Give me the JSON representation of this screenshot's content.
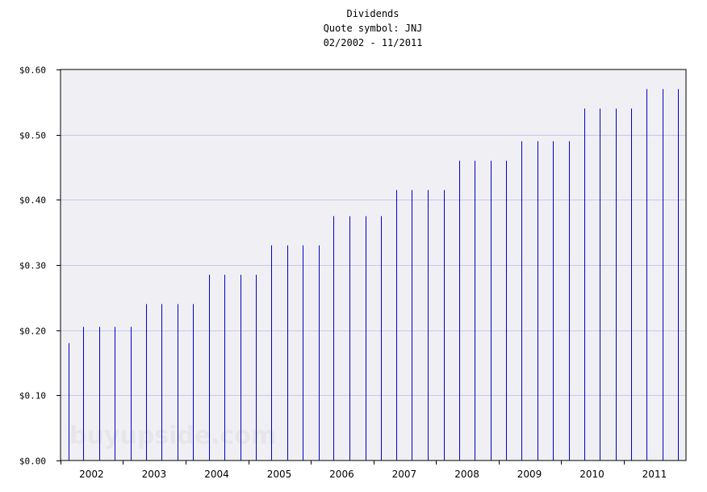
{
  "chart_data": {
    "type": "bar",
    "title": "Dividends",
    "subtitle": "Quote symbol: JNJ",
    "date_range": "02/2002 - 11/2011",
    "watermark": "buyupside.com",
    "ylim": [
      0,
      0.6
    ],
    "yticks": [
      {
        "value": 0.0,
        "label": "$0.00"
      },
      {
        "value": 0.1,
        "label": "$0.10"
      },
      {
        "value": 0.2,
        "label": "$0.20"
      },
      {
        "value": 0.3,
        "label": "$0.30"
      },
      {
        "value": 0.4,
        "label": "$0.40"
      },
      {
        "value": 0.5,
        "label": "$0.50"
      },
      {
        "value": 0.6,
        "label": "$0.60"
      }
    ],
    "xlim": [
      "2002-01-01",
      "2012-01-01"
    ],
    "xticks": [
      "2002",
      "2003",
      "2004",
      "2005",
      "2006",
      "2007",
      "2008",
      "2009",
      "2010",
      "2011"
    ],
    "grid": true,
    "colors": {
      "bar": "#0000cc",
      "plot_background": "#f0eff3",
      "grid": "#c8c8ee",
      "frame": "#000000"
    },
    "series": [
      {
        "dates": [
          "2002-02",
          "2002-05",
          "2002-08",
          "2002-11",
          "2003-02",
          "2003-05",
          "2003-08",
          "2003-11",
          "2004-02",
          "2004-05",
          "2004-08",
          "2004-11",
          "2005-02",
          "2005-05",
          "2005-08",
          "2005-11",
          "2006-02",
          "2006-05",
          "2006-08",
          "2006-11",
          "2007-02",
          "2007-05",
          "2007-08",
          "2007-11",
          "2008-02",
          "2008-05",
          "2008-08",
          "2008-11",
          "2009-02",
          "2009-05",
          "2009-08",
          "2009-11",
          "2010-02",
          "2010-05",
          "2010-08",
          "2010-11",
          "2011-02",
          "2011-05",
          "2011-08",
          "2011-11"
        ],
        "values": [
          0.18,
          0.205,
          0.205,
          0.205,
          0.205,
          0.24,
          0.24,
          0.24,
          0.24,
          0.285,
          0.285,
          0.285,
          0.285,
          0.33,
          0.33,
          0.33,
          0.33,
          0.375,
          0.375,
          0.375,
          0.375,
          0.415,
          0.415,
          0.415,
          0.415,
          0.46,
          0.46,
          0.46,
          0.46,
          0.49,
          0.49,
          0.49,
          0.49,
          0.54,
          0.54,
          0.54,
          0.54,
          0.57,
          0.57,
          0.57
        ]
      }
    ]
  }
}
